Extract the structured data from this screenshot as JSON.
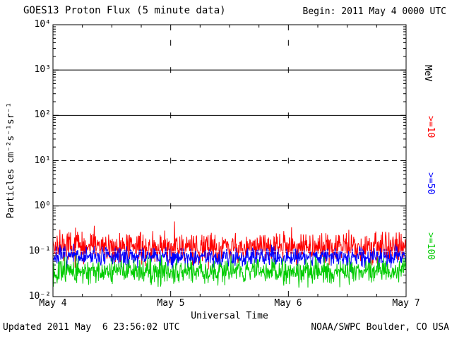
{
  "header": {
    "title": "GOES13 Proton Flux (5 minute data)",
    "begin": "Begin: 2011 May 4 0000 UTC"
  },
  "footer": {
    "updated": "Updated 2011 May  6 23:56:02 UTC",
    "source": "NOAA/SWPC Boulder, CO USA"
  },
  "right_axis": {
    "unit": "MeV",
    "unit_color": "#000000",
    "labels": [
      {
        "text": ">=10",
        "color": "#FF0000"
      },
      {
        "text": ">=50",
        "color": "#0000FF"
      },
      {
        "text": ">=100",
        "color": "#00CC00"
      }
    ]
  },
  "chart_data": {
    "type": "line",
    "title": "GOES13 Proton Flux (5 minute data)",
    "xlabel": "Universal Time",
    "ylabel": "Particles cm⁻²s⁻¹sr⁻¹",
    "x_tick_labels": [
      "May 4",
      "May 5",
      "May 6",
      "May 7"
    ],
    "y_tick_labels": [
      "10⁴",
      "10³",
      "10²",
      "10¹",
      "10⁰",
      "10⁻¹",
      "10⁻²"
    ],
    "y_tick_exponents": [
      4,
      3,
      2,
      1,
      0,
      -1,
      -2
    ],
    "x_range_days": 3,
    "points_per_day": 288,
    "y_log_range": [
      -2,
      4
    ],
    "y_axis_unit": "MeV",
    "grid": {
      "solid_decades": [
        3,
        2,
        0
      ],
      "dashed_decades": [
        1
      ],
      "white_dashed_decades": [
        -1
      ],
      "vgrid_days": [
        1,
        2
      ],
      "vgrid_mark_exponents": [
        3.6,
        3,
        2,
        1,
        0
      ]
    },
    "series": [
      {
        "name": ">=10 MeV",
        "color": "#FF0000",
        "seed": 42,
        "log10_mean": -0.92,
        "log10_sigma": 0.16,
        "spike_prob": 0.03,
        "spike_mag": 0.5,
        "approx_flux_range": [
          0.06,
          0.8
        ]
      },
      {
        "name": ">=50 MeV",
        "color": "#0000FF",
        "seed": 7,
        "log10_mean": -1.12,
        "log10_sigma": 0.11,
        "spike_prob": 0.0,
        "spike_mag": 0.0,
        "approx_flux_range": [
          0.04,
          0.15
        ]
      },
      {
        "name": ">=100 MeV",
        "color": "#00CC00",
        "seed": 13,
        "log10_mean": -1.44,
        "log10_sigma": 0.13,
        "spike_prob": 0.0,
        "spike_mag": 0.0,
        "approx_flux_range": [
          0.015,
          0.09
        ]
      }
    ]
  }
}
